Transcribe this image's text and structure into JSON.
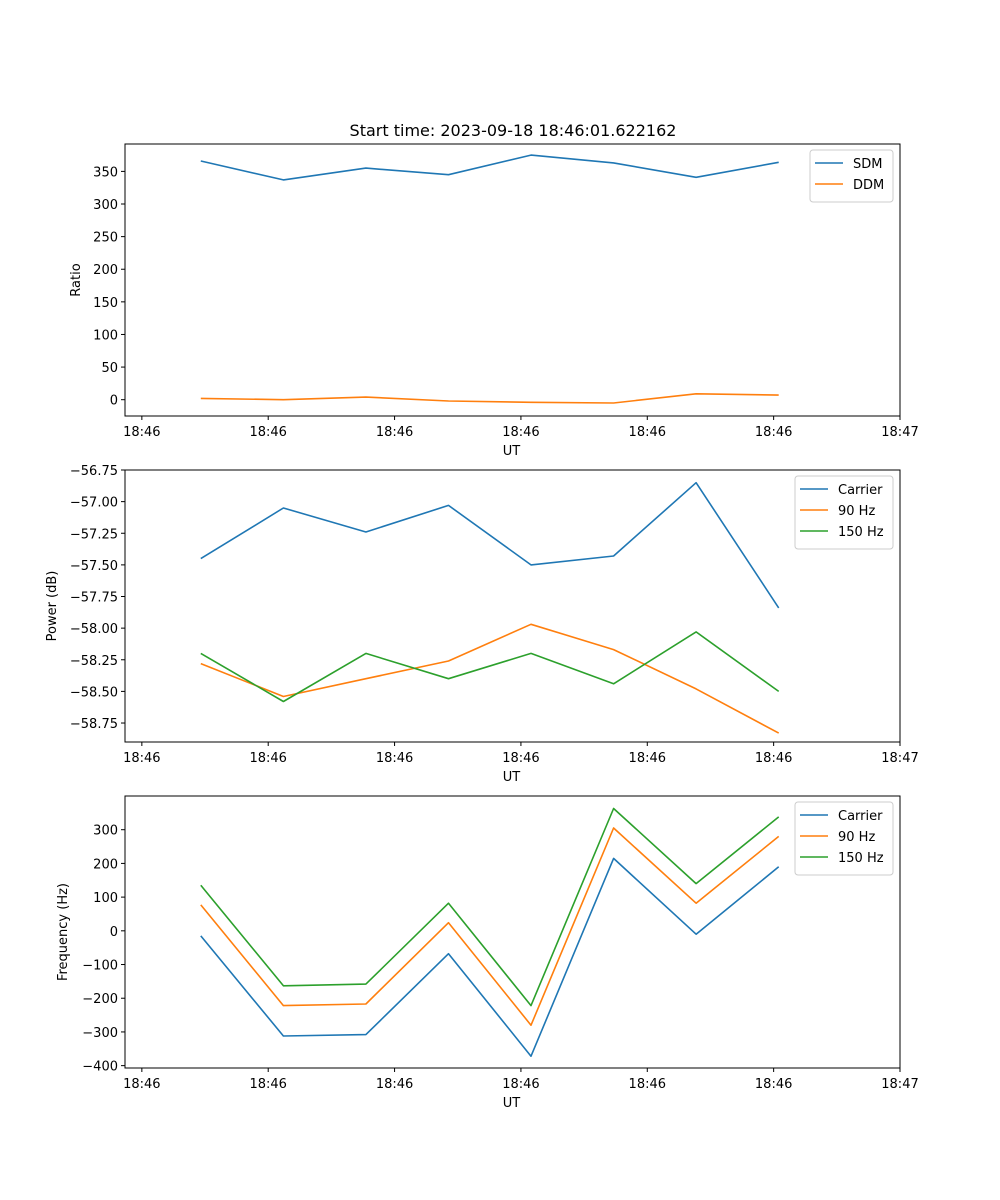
{
  "figure_title": "Start time: 2023-09-18 18:46:01.622162",
  "colors": {
    "blue": "#1f77b4",
    "orange": "#ff7f0e",
    "green": "#2ca02c"
  },
  "chart_data": [
    {
      "type": "line",
      "title": "Start time: 2023-09-18 18:46:01.622162",
      "xlabel": "UT",
      "ylabel": "Ratio",
      "xlim": [
        -0.1,
        4.5
      ],
      "ylim": [
        -25,
        392
      ],
      "xticks": [
        0,
        0.75,
        1.5,
        2.25,
        3.0,
        3.75,
        4.5
      ],
      "xtick_labels": [
        "18:46",
        "18:46",
        "18:46",
        "18:46",
        "18:46",
        "18:46",
        "18:47"
      ],
      "yticks": [
        0,
        50,
        100,
        150,
        200,
        250,
        300,
        350
      ],
      "ytick_labels": [
        "0",
        "50",
        "100",
        "150",
        "200",
        "250",
        "300",
        "350"
      ],
      "legend_position": "top-right",
      "x": [
        0.35,
        0.84,
        1.33,
        1.82,
        2.31,
        2.8,
        3.29,
        3.78
      ],
      "series": [
        {
          "name": "SDM",
          "color": "#1f77b4",
          "values": [
            366,
            337,
            355,
            345,
            375,
            363,
            341,
            364
          ]
        },
        {
          "name": "DDM",
          "color": "#ff7f0e",
          "values": [
            2,
            0,
            4,
            -2,
            -4,
            -5,
            9,
            7
          ]
        }
      ]
    },
    {
      "type": "line",
      "title": "",
      "xlabel": "UT",
      "ylabel": "Power (dB)",
      "xlim": [
        -0.1,
        4.5
      ],
      "ylim": [
        -58.9,
        -56.75
      ],
      "xticks": [
        0,
        0.75,
        1.5,
        2.25,
        3.0,
        3.75,
        4.5
      ],
      "xtick_labels": [
        "18:46",
        "18:46",
        "18:46",
        "18:46",
        "18:46",
        "18:46",
        "18:47"
      ],
      "yticks": [
        -56.75,
        -57.0,
        -57.25,
        -57.5,
        -57.75,
        -58.0,
        -58.25,
        -58.5,
        -58.75
      ],
      "ytick_labels": [
        "−56.75",
        "−57.00",
        "−57.25",
        "−57.50",
        "−57.75",
        "−58.00",
        "−58.25",
        "−58.50",
        "−58.75"
      ],
      "legend_position": "top-right",
      "x": [
        0.35,
        0.84,
        1.33,
        1.82,
        2.31,
        2.8,
        3.29,
        3.78
      ],
      "series": [
        {
          "name": "Carrier",
          "color": "#1f77b4",
          "values": [
            -57.45,
            -57.05,
            -57.24,
            -57.03,
            -57.5,
            -57.43,
            -56.85,
            -57.84
          ]
        },
        {
          "name": "90 Hz",
          "color": "#ff7f0e",
          "values": [
            -58.28,
            -58.54,
            -58.4,
            -58.26,
            -57.97,
            -58.17,
            -58.48,
            -58.83
          ]
        },
        {
          "name": "150 Hz",
          "color": "#2ca02c",
          "values": [
            -58.2,
            -58.58,
            -58.2,
            -58.4,
            -58.2,
            -58.44,
            -58.03,
            -58.5
          ]
        }
      ]
    },
    {
      "type": "line",
      "title": "",
      "xlabel": "UT",
      "ylabel": "Frequency (Hz)",
      "xlim": [
        -0.1,
        4.5
      ],
      "ylim": [
        -407,
        400
      ],
      "xticks": [
        0,
        0.75,
        1.5,
        2.25,
        3.0,
        3.75,
        4.5
      ],
      "xtick_labels": [
        "18:46",
        "18:46",
        "18:46",
        "18:46",
        "18:46",
        "18:46",
        "18:47"
      ],
      "yticks": [
        -400,
        -300,
        -200,
        -100,
        0,
        100,
        200,
        300
      ],
      "ytick_labels": [
        "−400",
        "−300",
        "−200",
        "−100",
        "0",
        "100",
        "200",
        "300"
      ],
      "legend_position": "top-right",
      "x": [
        0.35,
        0.84,
        1.33,
        1.82,
        2.31,
        2.8,
        3.29,
        3.78
      ],
      "series": [
        {
          "name": "Carrier",
          "color": "#1f77b4",
          "values": [
            -15,
            -312,
            -308,
            -68,
            -372,
            215,
            -10,
            190
          ]
        },
        {
          "name": "90 Hz",
          "color": "#ff7f0e",
          "values": [
            77,
            -222,
            -217,
            24,
            -280,
            305,
            82,
            280
          ]
        },
        {
          "name": "150 Hz",
          "color": "#2ca02c",
          "values": [
            135,
            -163,
            -158,
            82,
            -222,
            363,
            140,
            338
          ]
        }
      ]
    }
  ]
}
